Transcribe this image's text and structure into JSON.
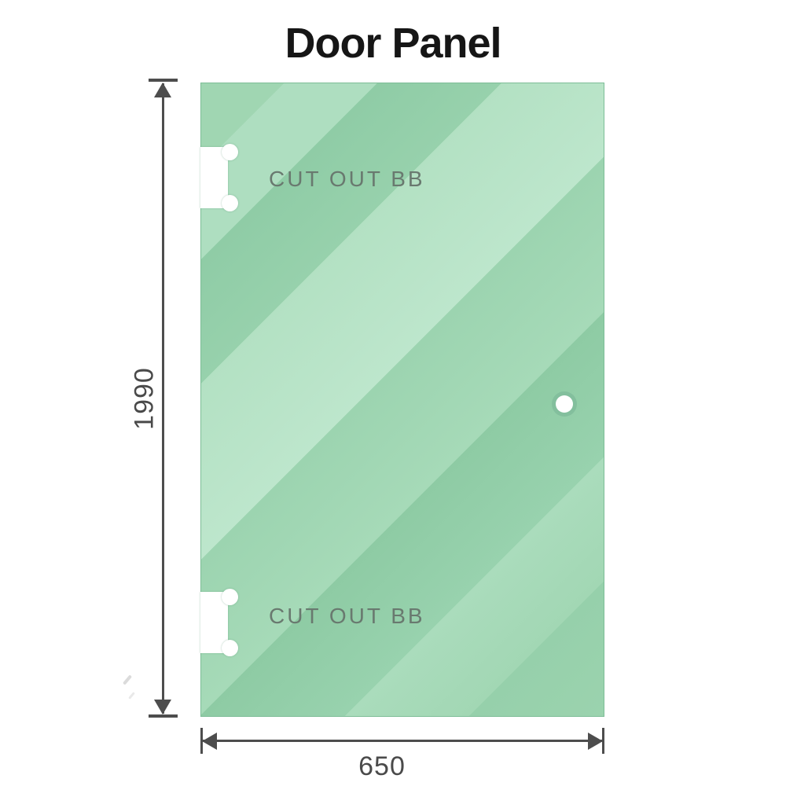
{
  "title": "Door Panel",
  "panel": {
    "cutouts": [
      {
        "label": "CUT OUT BB"
      },
      {
        "label": "CUT OUT BB"
      }
    ]
  },
  "dimensions": {
    "height": {
      "value": "1990"
    },
    "width": {
      "value": "650"
    }
  },
  "colors": {
    "glass_base": "#9bd3ae",
    "glass_light": "#bde6cc",
    "glass_dark": "#8ecba4",
    "dimension_line": "#4d4d4d",
    "cutout_text": "#69796f",
    "title_text": "#161616"
  }
}
